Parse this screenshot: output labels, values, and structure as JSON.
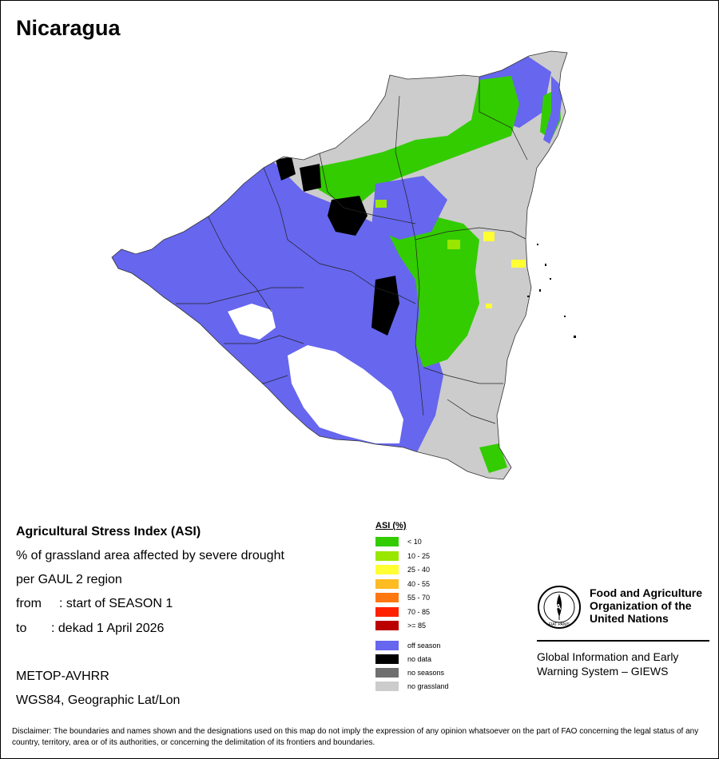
{
  "map": {
    "title": "Nicaragua"
  },
  "info": {
    "heading": "Agricultural Stress Index (ASI)",
    "line1": "% of grassland area affected by severe drought",
    "line2": "per GAUL 2 region",
    "from_label": "from",
    "from_value": ": start of SEASON 1",
    "to_label": "to",
    "to_value": ": dekad 1 April 2026",
    "sensor": "METOP-AVHRR",
    "projection": "WGS84, Geographic Lat/Lon"
  },
  "legend": {
    "title": "ASI (%)",
    "classes": [
      {
        "label": "< 10",
        "color": "#33cc00"
      },
      {
        "label": "10 - 25",
        "color": "#99e600"
      },
      {
        "label": "25 - 40",
        "color": "#ffff33"
      },
      {
        "label": "40 - 55",
        "color": "#ffbb22"
      },
      {
        "label": "55 - 70",
        "color": "#ff7711"
      },
      {
        "label": "70 - 85",
        "color": "#ff2200"
      },
      {
        "label": ">= 85",
        "color": "#bb0000"
      }
    ],
    "other": [
      {
        "label": "off season",
        "color": "#6666ee"
      },
      {
        "label": "no data",
        "color": "#000000"
      },
      {
        "label": "no seasons",
        "color": "#707070"
      },
      {
        "label": "no grassland",
        "color": "#cccccc"
      }
    ]
  },
  "colors": {
    "off_season": "#6666ee",
    "no_grassland": "#cccccc",
    "low_asi": "#33cc00",
    "mid_asi": "#99e600",
    "moderate_asi": "#ffff33",
    "no_data": "#000000",
    "lake": "#ffffff"
  },
  "branding": {
    "org_name": "Food and Agriculture Organization of the United Nations",
    "logo_text": "FAO",
    "motto": "FIAT PANIS",
    "system_name": "Global Information and Early Warning System – GIEWS"
  },
  "disclaimer": "Disclaimer: The boundaries and names shown and the designations used on this map do not imply the expression of any opinion whatsoever on the part of FAO concerning the legal status of any country, territory, area or of its authorities, or concerning the delimitation of its frontiers and boundaries."
}
